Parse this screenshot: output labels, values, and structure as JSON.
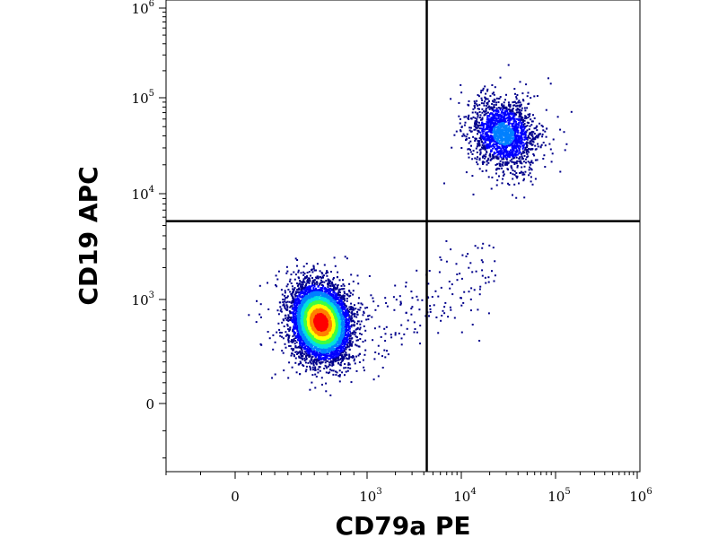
{
  "chart_data": {
    "type": "scatter",
    "subtype": "flow-cytometry density dot plot with quadrant gates",
    "xlabel": "CD79a PE",
    "ylabel": "CD19 APC",
    "x_scale": "biexponential (log with linear region around 0)",
    "y_scale": "biexponential (log with linear region around 0)",
    "xlim": [
      -300,
      1000000
    ],
    "ylim": [
      -300,
      1000000
    ],
    "x_ticks": [
      {
        "base": "0",
        "exp": "",
        "value": 0
      },
      {
        "base": "10",
        "exp": "3",
        "value": 1000
      },
      {
        "base": "10",
        "exp": "4",
        "value": 10000
      },
      {
        "base": "10",
        "exp": "5",
        "value": 100000
      },
      {
        "base": "10",
        "exp": "6",
        "value": 1000000
      }
    ],
    "y_ticks": [
      {
        "base": "0",
        "exp": "",
        "value": 0
      },
      {
        "base": "10",
        "exp": "3",
        "value": 1000
      },
      {
        "base": "10",
        "exp": "4",
        "value": 10000
      },
      {
        "base": "10",
        "exp": "5",
        "value": 100000
      },
      {
        "base": "10",
        "exp": "6",
        "value": 1000000
      }
    ],
    "gates": {
      "x_threshold": 4300,
      "y_threshold": 5500
    },
    "populations": [
      {
        "name": "",
        "center_x": 650,
        "center_y": 780,
        "spread_x_log": 0.14,
        "spread_y_log": 0.17,
        "relative_size": 1.0
      },
      {
        "name": "",
        "center_x": 28000,
        "center_y": 42000,
        "spread_x_log": 0.17,
        "spread_y_log": 0.17,
        "relative_size": 0.25
      }
    ],
    "colormap": [
      "#00008b",
      "#0000ff",
      "#0080ff",
      "#00e0e0",
      "#40ff40",
      "#ffff00",
      "#ff8000",
      "#ff0000"
    ],
    "grid": false,
    "legend": "none"
  }
}
